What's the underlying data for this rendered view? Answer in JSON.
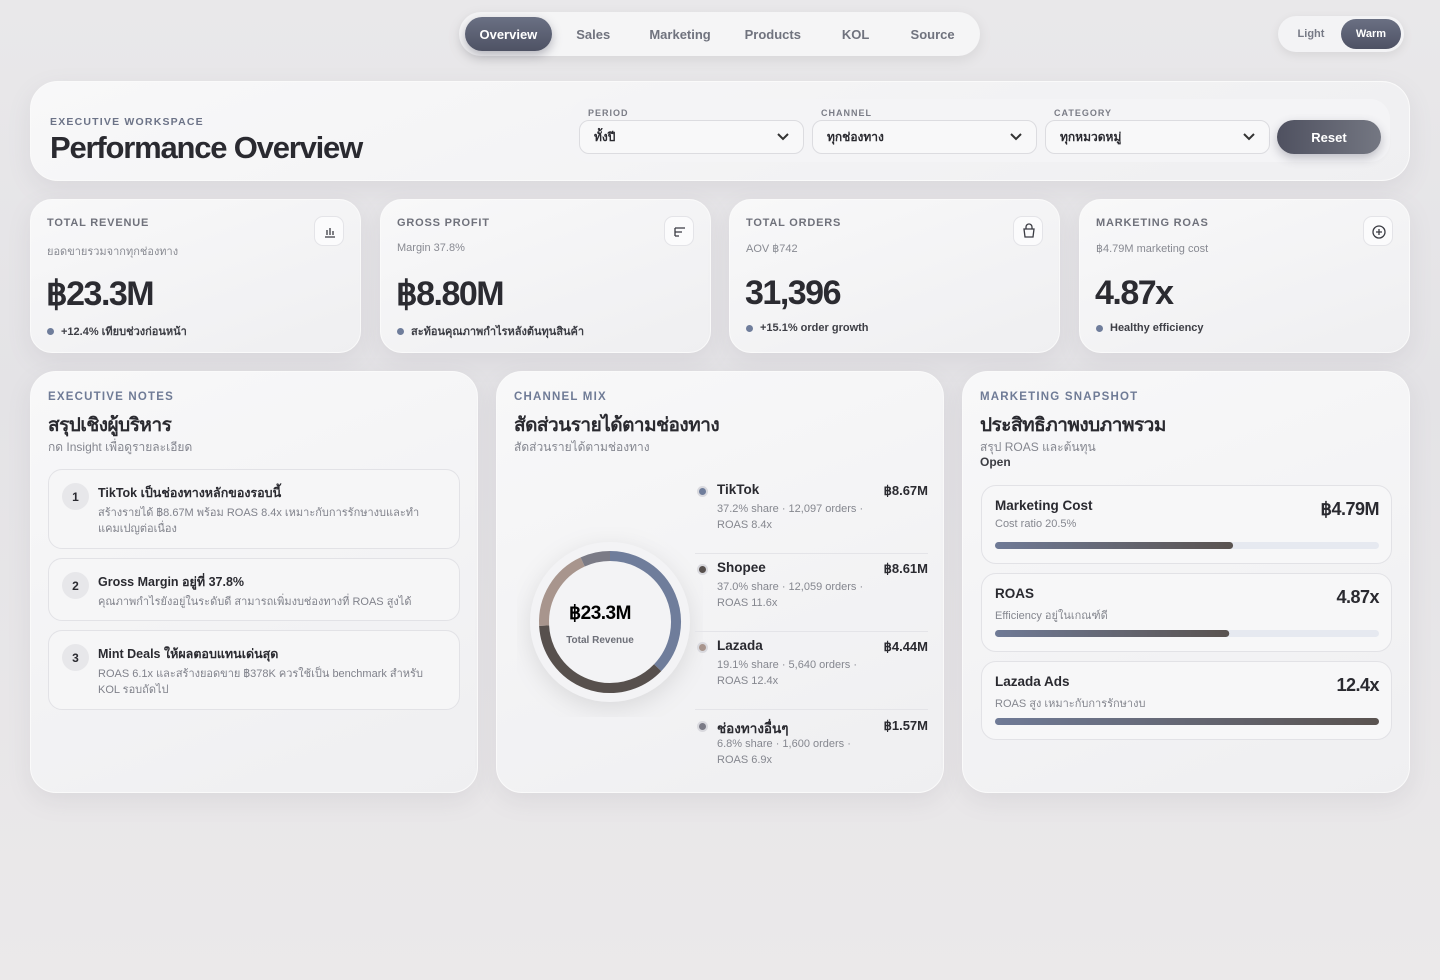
{
  "nav": {
    "tabs": [
      "Overview",
      "Sales",
      "Marketing",
      "Products",
      "KOL",
      "Source"
    ],
    "theme": [
      "Light",
      "Warm"
    ]
  },
  "header": {
    "eyebrow": "EXECUTIVE WORKSPACE",
    "title": "Performance Overview",
    "filters": [
      {
        "label": "PERIOD",
        "value": "ทั้งปี"
      },
      {
        "label": "CHANNEL",
        "value": "ทุกช่องทาง"
      },
      {
        "label": "CATEGORY",
        "value": "ทุกหมวดหมู่"
      }
    ],
    "reset": "Reset"
  },
  "kpis": [
    {
      "label": "TOTAL REVENUE",
      "sub": "ยอดขายรวมจากทุกช่องทาง",
      "value": "฿23.3M",
      "note": "+12.4% เทียบช่วงก่อนหน้า"
    },
    {
      "label": "GROSS PROFIT",
      "sub": "Margin 37.8%",
      "value": "฿8.80M",
      "note": "สะท้อนคุณภาพกำไรหลังต้นทุนสินค้า"
    },
    {
      "label": "TOTAL ORDERS",
      "sub": "AOV ฿742",
      "value": "31,396",
      "note": "+15.1% order growth"
    },
    {
      "label": "MARKETING ROAS",
      "sub": "฿4.79M marketing cost",
      "value": "4.87x",
      "note": "Healthy efficiency"
    }
  ],
  "notes": {
    "eyebrow": "EXECUTIVE NOTES",
    "title": "สรุปเชิงผู้บริหาร",
    "subtitle": "กด Insight เพื่อดูรายละเอียด",
    "items": [
      {
        "num": 1,
        "title": "TikTok เป็นช่องทางหลักของรอบนี้",
        "text": "สร้างรายได้ ฿8.67M พร้อม ROAS 8.4x เหมาะกับการรักษางบและทำแคมเปญต่อเนื่อง"
      },
      {
        "num": 2,
        "title": "Gross Margin อยู่ที่ 37.8%",
        "text": "คุณภาพกำไรยังอยู่ในระดับดี สามารถเพิ่มงบช่องทางที่ ROAS สูงได้"
      },
      {
        "num": 3,
        "title": "Mint Deals ให้ผลตอบแทนเด่นสุด",
        "text": "ROAS 6.1x และสร้างยอดขาย ฿378K ควรใช้เป็น benchmark สำหรับ KOL รอบถัดไป"
      }
    ]
  },
  "channel_mix": {
    "type": "donut",
    "eyebrow": "CHANNEL MIX",
    "title": "สัดส่วนรายได้ตามช่องทาง",
    "subtitle": "สัดส่วนรายได้ตามช่องทาง",
    "center_value": "฿23.3M",
    "center_label": "Total Revenue",
    "channels": [
      {
        "name": "TikTok",
        "value": "฿8.67M",
        "detail": "37.2% share · 12,097 orders · ROAS 8.4x",
        "share": 37.2,
        "color": "#6f7d9b"
      },
      {
        "name": "Shopee",
        "value": "฿8.61M",
        "detail": "37.0% share · 12,059 orders · ROAS 11.6x",
        "share": 37.0,
        "color": "#57504d"
      },
      {
        "name": "Lazada",
        "value": "฿4.44M",
        "detail": "19.1% share · 5,640 orders · ROAS 12.4x",
        "share": 19.1,
        "color": "#a8958d"
      },
      {
        "name": "ช่องทางอื่นๆ",
        "value": "฿1.57M",
        "detail": "6.8% share · 1,600 orders · ROAS 6.9x",
        "share": 6.8,
        "color": "#7b7b86"
      }
    ]
  },
  "marketing": {
    "eyebrow": "MARKETING SNAPSHOT",
    "title": "ประสิทธิภาพงบภาพรวม",
    "subtitle": "สรุป ROAS และต้นทุน",
    "status": "Open",
    "items": [
      {
        "name": "Marketing Cost",
        "sub": "Cost ratio 20.5%",
        "value": "฿4.79M",
        "progress": 62
      },
      {
        "name": "ROAS",
        "sub": "Efficiency อยู่ในเกณฑ์ดี",
        "value": "4.87x",
        "progress": 61
      },
      {
        "name": "Lazada Ads",
        "sub": "ROAS สูง เหมาะกับการรักษางบ",
        "value": "12.4x",
        "progress": 100
      }
    ]
  }
}
